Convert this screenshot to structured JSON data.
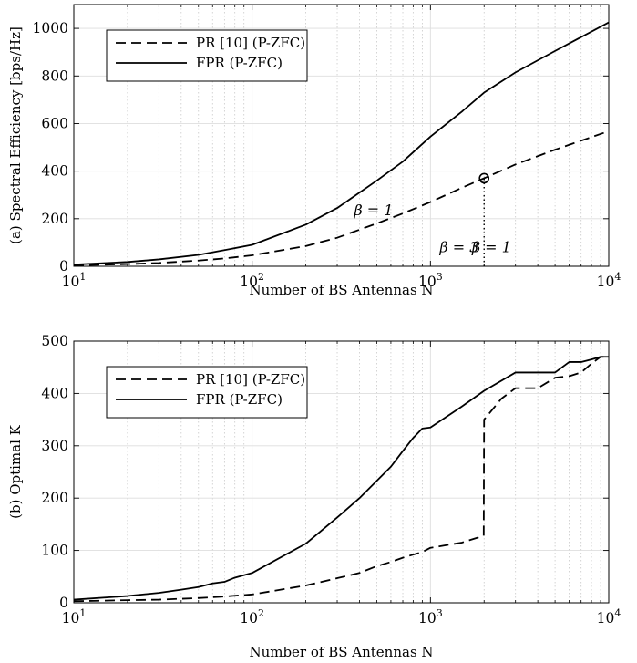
{
  "chart_data": [
    {
      "type": "line",
      "xscale": "log",
      "xlim": [
        10,
        10000
      ],
      "ylim": [
        0,
        1100
      ],
      "xticks": [
        10,
        100,
        1000,
        10000
      ],
      "xtick_labels": [
        {
          "base": "10",
          "exp": "1"
        },
        {
          "base": "10",
          "exp": "2"
        },
        {
          "base": "10",
          "exp": "3"
        },
        {
          "base": "10",
          "exp": "4"
        }
      ],
      "yticks": [
        0,
        200,
        400,
        600,
        800,
        1000
      ],
      "ytick_labels": [
        "0",
        "200",
        "400",
        "600",
        "800",
        "1000"
      ],
      "xlabel": "Number of BS Antennas N",
      "ylabel": "(a) Spectral Efficiency [bps/Hz]",
      "grid": true,
      "legend_position": "top-left",
      "series": [
        {
          "name": "PR [10] (P-ZFC)",
          "style": "dashed",
          "x": [
            10,
            20,
            30,
            50,
            70,
            100,
            200,
            300,
            500,
            700,
            1000,
            1500,
            2000,
            3000,
            5000,
            10000
          ],
          "y": [
            4,
            9,
            14,
            24,
            33,
            46,
            85,
            120,
            180,
            222,
            270,
            330,
            370,
            428,
            490,
            568
          ]
        },
        {
          "name": "FPR (P-ZFC)",
          "style": "solid",
          "x": [
            10,
            20,
            30,
            50,
            70,
            100,
            200,
            300,
            500,
            700,
            1000,
            1500,
            2000,
            3000,
            5000,
            10000
          ],
          "y": [
            7,
            18,
            29,
            48,
            68,
            90,
            175,
            245,
            360,
            440,
            545,
            650,
            730,
            815,
            905,
            1025
          ]
        }
      ],
      "annotations": [
        {
          "text": "β = 1",
          "x": 480,
          "y": 215
        },
        {
          "text": "β = 3",
          "x": 1450,
          "y": 60
        },
        {
          "text": "β = 1",
          "x": 2200,
          "y": 60
        }
      ],
      "marker": {
        "shape": "circle",
        "x": 2000,
        "y": 370
      },
      "dotted_vline": {
        "x": 2000,
        "y_from": 0,
        "y_to": 370
      }
    },
    {
      "type": "line",
      "xscale": "log",
      "xlim": [
        10,
        10000
      ],
      "ylim": [
        0,
        500
      ],
      "xticks": [
        10,
        100,
        1000,
        10000
      ],
      "xtick_labels": [
        {
          "base": "10",
          "exp": "1"
        },
        {
          "base": "10",
          "exp": "2"
        },
        {
          "base": "10",
          "exp": "3"
        },
        {
          "base": "10",
          "exp": "4"
        }
      ],
      "yticks": [
        0,
        100,
        200,
        300,
        400,
        500
      ],
      "ytick_labels": [
        "0",
        "100",
        "200",
        "300",
        "400",
        "500"
      ],
      "xlabel": "Number of BS Antennas N",
      "ylabel": "(b) Optimal K",
      "grid": true,
      "legend_position": "top-left",
      "series": [
        {
          "name": "PR [10] (P-ZFC)",
          "style": "dashed",
          "x": [
            10,
            20,
            30,
            50,
            70,
            100,
            200,
            300,
            400,
            500,
            600,
            700,
            800,
            900,
            1000,
            1500,
            1990,
            2000,
            2500,
            3000,
            4000,
            5000,
            6000,
            7000,
            8000,
            9000,
            10000
          ],
          "y": [
            3,
            5,
            6,
            9,
            12,
            16,
            33,
            47,
            57,
            70,
            78,
            86,
            92,
            97,
            105,
            115,
            128,
            350,
            390,
            410,
            410,
            430,
            433,
            440,
            457,
            470,
            470
          ]
        },
        {
          "name": "FPR (P-ZFC)",
          "style": "solid",
          "x": [
            10,
            20,
            30,
            40,
            50,
            60,
            70,
            80,
            100,
            200,
            300,
            400,
            500,
            600,
            700,
            800,
            900,
            1000,
            1500,
            2000,
            3000,
            4000,
            5000,
            6000,
            7000,
            8000,
            9000,
            10000
          ],
          "y": [
            6,
            13,
            19,
            25,
            30,
            37,
            40,
            48,
            57,
            113,
            163,
            200,
            233,
            260,
            290,
            315,
            333,
            335,
            375,
            405,
            440,
            440,
            440,
            460,
            460,
            465,
            470,
            470
          ]
        }
      ]
    }
  ]
}
